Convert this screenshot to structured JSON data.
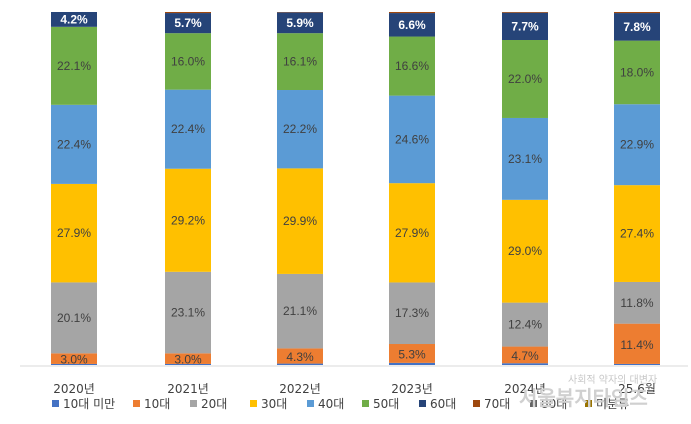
{
  "chart_data": {
    "type": "bar",
    "stacked": true,
    "percent_stacked": true,
    "categories": [
      "2020년",
      "2021년",
      "2022년",
      "2023년",
      "2024년",
      "25.6월"
    ],
    "series": [
      {
        "name": "10대 미만",
        "color": "#4472c4",
        "values": [
          0.3,
          0.3,
          0.4,
          0.6,
          0.5,
          0.3
        ]
      },
      {
        "name": "10대",
        "color": "#ed7d31",
        "values": [
          3.0,
          3.0,
          4.3,
          5.3,
          4.7,
          11.4
        ]
      },
      {
        "name": "20대",
        "color": "#a5a5a5",
        "values": [
          20.1,
          23.1,
          21.1,
          17.3,
          12.4,
          11.8
        ]
      },
      {
        "name": "30대",
        "color": "#ffc000",
        "values": [
          27.9,
          29.2,
          29.9,
          27.9,
          29.0,
          27.4
        ]
      },
      {
        "name": "40대",
        "color": "#5b9bd5",
        "values": [
          22.4,
          22.4,
          22.2,
          24.6,
          23.1,
          22.9
        ]
      },
      {
        "name": "50대",
        "color": "#70ad47",
        "values": [
          22.1,
          16.0,
          16.1,
          16.6,
          22.0,
          18.0
        ]
      },
      {
        "name": "60대",
        "color": "#264478",
        "values": [
          4.2,
          5.7,
          5.9,
          6.6,
          7.7,
          7.8
        ]
      },
      {
        "name": "70대",
        "color": "#9e480e",
        "values": [
          0.0,
          0.3,
          0.1,
          0.3,
          0.2,
          0.3
        ]
      },
      {
        "name": "80대",
        "color": "#636363",
        "values": [
          0.0,
          0.0,
          0.0,
          0.0,
          0.0,
          0.0
        ]
      },
      {
        "name": "미분류",
        "color": "#997300",
        "values": [
          0.0,
          0.0,
          0.0,
          0.0,
          0.0,
          0.0
        ]
      }
    ],
    "data_labels": {
      "10대": [
        "3.0%",
        "3.0%",
        "4.3%",
        "5.3%",
        "4.7%",
        "11.4%"
      ],
      "20대": [
        "20.1%",
        "23.1%",
        "21.1%",
        "17.3%",
        "12.4%",
        "11.8%"
      ],
      "30대": [
        "27.9%",
        "29.2%",
        "29.9%",
        "27.9%",
        "29.0%",
        "27.4%"
      ],
      "40대": [
        "22.4%",
        "22.4%",
        "22.2%",
        "24.6%",
        "23.1%",
        "22.9%"
      ],
      "50대": [
        "22.1%",
        "16.0%",
        "16.1%",
        "16.6%",
        "22.0%",
        "18.0%"
      ],
      "60대": [
        "4.2%",
        "5.7%",
        "5.9%",
        "6.6%",
        "7.7%",
        "7.8%"
      ]
    },
    "label_colors": {
      "10대": "#404040",
      "20대": "#404040",
      "30대": "#404040",
      "40대": "#404040",
      "50대": "#404040",
      "60대": "#ffffff"
    },
    "ylim": [
      0,
      100
    ],
    "grid": false,
    "legend_position": "bottom"
  },
  "watermark": {
    "line1": "사회적 약자의 대변자",
    "line2": "서울복지타임즈"
  }
}
